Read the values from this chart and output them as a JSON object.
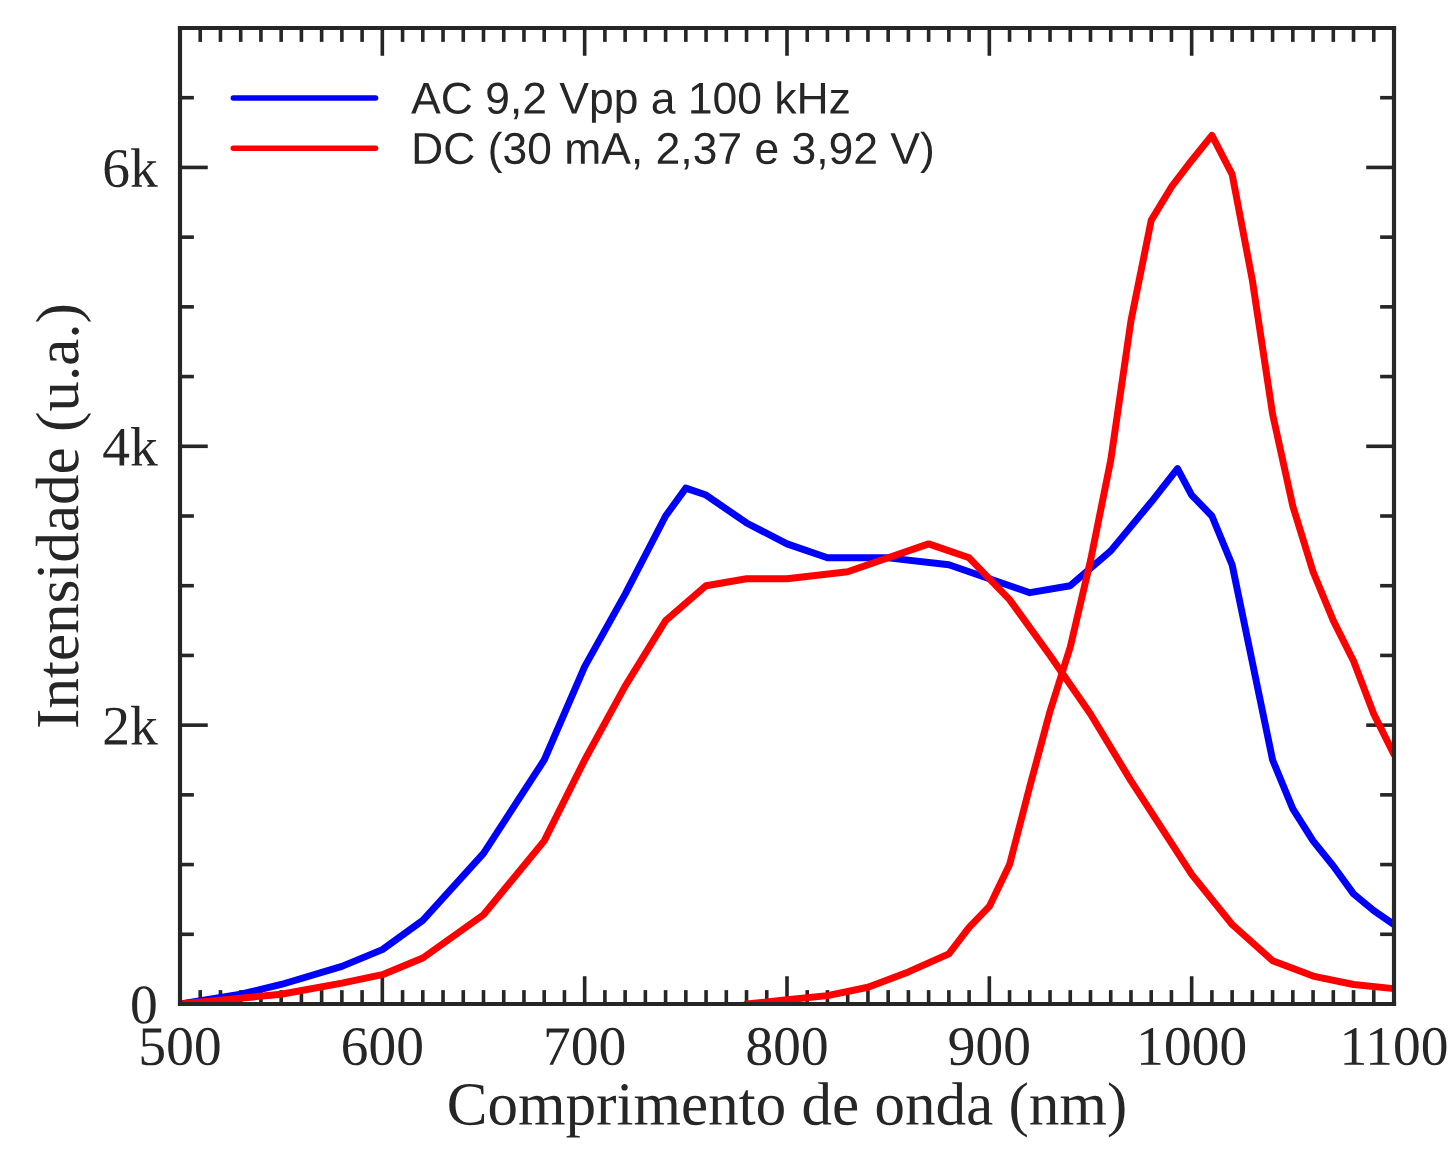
{
  "chart_data": {
    "type": "line",
    "xlabel": "Comprimento de onda (nm)",
    "ylabel": "Intensidade (u.a.)",
    "xlim": [
      500,
      1100
    ],
    "xticks": [
      500,
      600,
      700,
      800,
      900,
      1000,
      1100
    ],
    "ylim": [
      0,
      7000
    ],
    "yticks": [
      0,
      {
        "value": 2000,
        "label": "2k"
      },
      {
        "value": 4000,
        "label": "4k"
      },
      {
        "value": 6000,
        "label": "6k"
      }
    ],
    "grid": false,
    "legend": "top left",
    "line_style": "solid",
    "marker": "none",
    "series": [
      {
        "name": "AC 9,2 Vpp a 100 kHz",
        "color": "#0000ff",
        "x": [
          500,
          530,
          550,
          580,
          600,
          620,
          650,
          680,
          700,
          720,
          740,
          750,
          760,
          780,
          800,
          820,
          850,
          880,
          900,
          920,
          940,
          960,
          980,
          993,
          1000,
          1010,
          1020,
          1030,
          1040,
          1050,
          1060,
          1070,
          1080,
          1090,
          1100
        ],
        "values": [
          0,
          70,
          140,
          270,
          390,
          600,
          1080,
          1750,
          2420,
          2940,
          3500,
          3700,
          3650,
          3450,
          3300,
          3200,
          3200,
          3150,
          3050,
          2950,
          3000,
          3250,
          3600,
          3840,
          3650,
          3500,
          3150,
          2450,
          1750,
          1400,
          1170,
          990,
          790,
          670,
          570
        ]
      },
      {
        "name": "DC (30 mA, 2,37 e 3,92 V)",
        "color": "#ff0000",
        "x": [
          500,
          550,
          580,
          600,
          620,
          650,
          680,
          700,
          720,
          740,
          760,
          780,
          800,
          830,
          850,
          870,
          890,
          910,
          930,
          950,
          970,
          1000,
          1020,
          1040,
          1060,
          1080,
          1100
        ],
        "values": [
          0,
          70,
          150,
          210,
          330,
          640,
          1170,
          1750,
          2280,
          2750,
          3000,
          3050,
          3050,
          3100,
          3200,
          3300,
          3200,
          2900,
          2500,
          2080,
          1600,
          930,
          570,
          310,
          200,
          140,
          110
        ]
      },
      {
        "color": "#ff0000",
        "x": [
          780,
          800,
          820,
          840,
          860,
          880,
          890,
          900,
          910,
          920,
          930,
          940,
          950,
          960,
          970,
          980,
          990,
          1000,
          1010,
          1020,
          1030,
          1040,
          1050,
          1060,
          1070,
          1080,
          1090,
          1100
        ],
        "values": [
          0,
          30,
          60,
          120,
          230,
          360,
          550,
          700,
          1000,
          1560,
          2100,
          2560,
          3180,
          3900,
          4900,
          5620,
          5860,
          6050,
          6230,
          5950,
          5190,
          4230,
          3570,
          3100,
          2750,
          2460,
          2080,
          1790
        ]
      }
    ]
  }
}
